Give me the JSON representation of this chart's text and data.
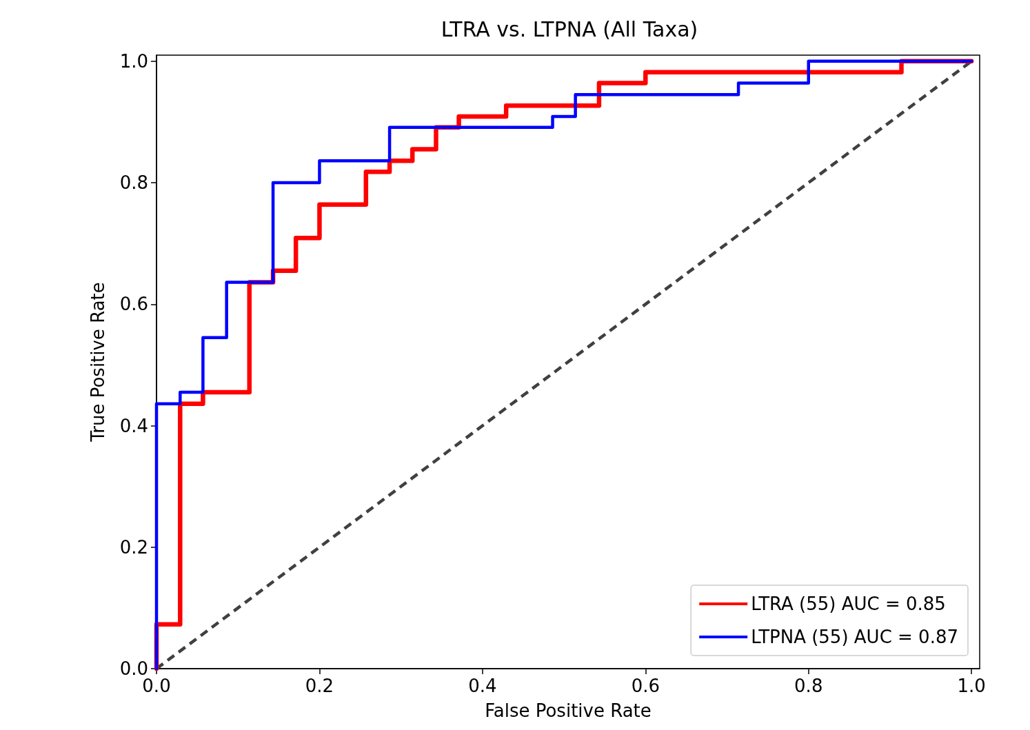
{
  "chart_data": {
    "type": "step",
    "title": "LTRA vs. LTPNA (All Taxa)",
    "xlabel": "False Positive Rate",
    "ylabel": "True Positive Rate",
    "xlim": [
      0,
      1.01
    ],
    "ylim": [
      0,
      1.01
    ],
    "xticks": [
      {
        "value": 0,
        "label": "0.0"
      },
      0.2,
      0.4,
      0.6,
      0.8,
      {
        "value": 1,
        "label": "1.0"
      }
    ],
    "yticks": [
      {
        "value": 0,
        "label": "0.0"
      },
      0.2,
      0.4,
      0.6,
      0.8,
      {
        "value": 1,
        "label": "1.0"
      }
    ],
    "grid": false,
    "legend": "bottom right",
    "marker": "none",
    "series": [
      {
        "name": "LTRA (55) AUC = 0.85",
        "color": "#ff0000",
        "x": [
          0,
          0,
          0.029,
          0.057,
          0.114,
          0.143,
          0.171,
          0.2,
          0.257,
          0.286,
          0.314,
          0.343,
          0.371,
          0.429,
          0.543,
          0.6,
          0.914,
          1
        ],
        "values": [
          0,
          0.073,
          0.436,
          0.455,
          0.636,
          0.655,
          0.709,
          0.764,
          0.818,
          0.836,
          0.855,
          0.891,
          0.909,
          0.927,
          0.964,
          0.982,
          1,
          1
        ]
      },
      {
        "name": "LTPNA (55) AUC = 0.87",
        "color": "#0000ff",
        "x": [
          0,
          0,
          0.029,
          0.057,
          0.086,
          0.143,
          0.2,
          0.286,
          0.486,
          0.514,
          0.714,
          0.8,
          1
        ],
        "values": [
          0,
          0.436,
          0.455,
          0.545,
          0.636,
          0.8,
          0.836,
          0.891,
          0.909,
          0.945,
          0.964,
          1,
          1
        ]
      },
      {
        "type": "line",
        "color": "#404040",
        "line_style": "dashed",
        "x": [
          0,
          1
        ],
        "values": [
          0,
          1
        ]
      }
    ]
  }
}
